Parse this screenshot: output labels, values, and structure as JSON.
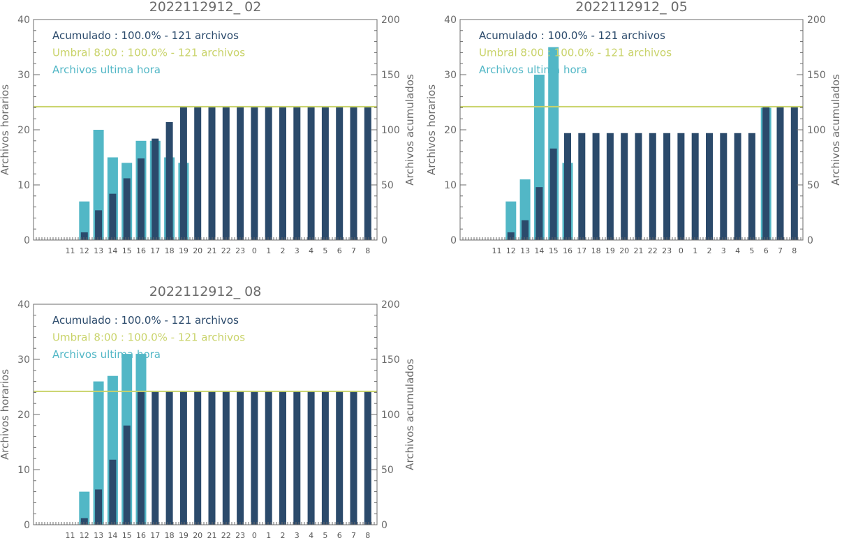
{
  "colors": {
    "acumulado": "#2b4a6b",
    "umbral": "#c9d36a",
    "hora": "#52b7c6",
    "axis": "#6b6b6b"
  },
  "chart_data": [
    {
      "type": "bar",
      "title": "2022112912_ 02",
      "ylabel_left": "Archivos horarios",
      "ylabel_right": "Archivos acumulados",
      "ylim_left": [
        0,
        40
      ],
      "ylim_right": [
        0,
        200
      ],
      "yticks_left": [
        "0",
        "10",
        "20",
        "30",
        "40"
      ],
      "yticks_right": [
        "0",
        "50",
        "100",
        "150",
        "200"
      ],
      "categories": [
        "11",
        "12",
        "13",
        "14",
        "15",
        "16",
        "17",
        "18",
        "19",
        "20",
        "21",
        "22",
        "23",
        "0",
        "1",
        "2",
        "3",
        "4",
        "5",
        "6",
        "7",
        "8"
      ],
      "legend": [
        "Acumulado : 100.0% - 121 archivos",
        "Umbral 8:00 : 100.0% - 121 archivos",
        "Archivos ultima hora"
      ],
      "threshold": 121,
      "series": [
        {
          "name": "Archivos ultima hora",
          "axis": "left",
          "values": [
            0,
            7,
            20,
            15,
            14,
            18,
            18,
            15,
            14,
            0,
            0,
            0,
            0,
            0,
            0,
            0,
            0,
            0,
            0,
            0,
            0,
            0
          ]
        },
        {
          "name": "Acumulado",
          "axis": "right",
          "values": [
            0,
            7,
            27,
            42,
            56,
            74,
            92,
            107,
            121,
            121,
            121,
            121,
            121,
            121,
            121,
            121,
            121,
            121,
            121,
            121,
            121,
            121
          ]
        }
      ]
    },
    {
      "type": "bar",
      "title": "2022112912_ 05",
      "ylabel_left": "Archivos horarios",
      "ylabel_right": "Archivos acumulados",
      "ylim_left": [
        0,
        40
      ],
      "ylim_right": [
        0,
        200
      ],
      "yticks_left": [
        "0",
        "10",
        "20",
        "30",
        "40"
      ],
      "yticks_right": [
        "0",
        "50",
        "100",
        "150",
        "200"
      ],
      "categories": [
        "11",
        "12",
        "13",
        "14",
        "15",
        "16",
        "17",
        "18",
        "19",
        "20",
        "21",
        "22",
        "23",
        "0",
        "1",
        "2",
        "3",
        "4",
        "5",
        "6",
        "7",
        "8"
      ],
      "legend": [
        "Acumulado : 100.0% - 121 archivos",
        "Umbral 8:00 : 100.0% - 121 archivos",
        "Archivos ultima hora"
      ],
      "threshold": 121,
      "series": [
        {
          "name": "Archivos ultima hora",
          "axis": "left",
          "values": [
            0,
            7,
            11,
            30,
            35,
            14,
            0,
            0,
            0,
            0,
            0,
            0,
            0,
            0,
            0,
            0,
            0,
            0,
            0,
            24,
            0,
            0
          ]
        },
        {
          "name": "Acumulado",
          "axis": "right",
          "values": [
            0,
            7,
            18,
            48,
            83,
            97,
            97,
            97,
            97,
            97,
            97,
            97,
            97,
            97,
            97,
            97,
            97,
            97,
            97,
            121,
            121,
            121
          ]
        }
      ]
    },
    {
      "type": "bar",
      "title": "2022112912_ 08",
      "ylabel_left": "Archivos horarios",
      "ylabel_right": "Archivos acumulados",
      "ylim_left": [
        0,
        40
      ],
      "ylim_right": [
        0,
        200
      ],
      "yticks_left": [
        "0",
        "10",
        "20",
        "30",
        "40"
      ],
      "yticks_right": [
        "0",
        "50",
        "100",
        "150",
        "200"
      ],
      "categories": [
        "11",
        "12",
        "13",
        "14",
        "15",
        "16",
        "17",
        "18",
        "19",
        "20",
        "21",
        "22",
        "23",
        "0",
        "1",
        "2",
        "3",
        "4",
        "5",
        "6",
        "7",
        "8"
      ],
      "legend": [
        "Acumulado : 100.0% - 121 archivos",
        "Umbral 8:00 : 100.0% - 121 archivos",
        "Archivos ultima hora"
      ],
      "threshold": 121,
      "series": [
        {
          "name": "Archivos ultima hora",
          "axis": "left",
          "values": [
            0,
            6,
            26,
            27,
            31,
            31,
            0,
            0,
            0,
            0,
            0,
            0,
            0,
            0,
            0,
            0,
            0,
            0,
            0,
            0,
            0,
            0
          ]
        },
        {
          "name": "Acumulado",
          "axis": "right",
          "values": [
            0,
            6,
            32,
            59,
            90,
            121,
            121,
            121,
            121,
            121,
            121,
            121,
            121,
            121,
            121,
            121,
            121,
            121,
            121,
            121,
            121,
            121
          ]
        }
      ]
    }
  ]
}
